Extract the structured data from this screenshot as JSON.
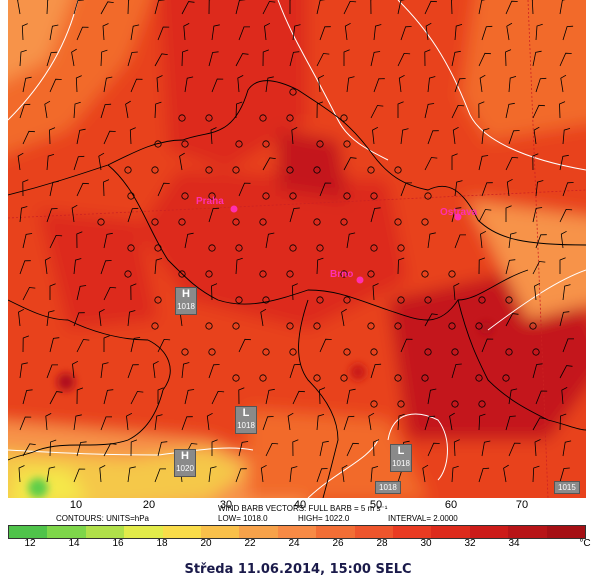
{
  "colors": {
    "deep_red": "#c4161c",
    "red": "#dd2b1c",
    "red_orange": "#e8421f",
    "orange": "#f26a2c",
    "light_orange": "#f7934a",
    "yellow": "#f5e84a",
    "green": "#5fce4a",
    "city": "#ff2fb0",
    "contour": "#ffffff",
    "border": "#000000"
  },
  "map": {
    "cities": [
      {
        "name": "Praha"
      },
      {
        "name": "Ostrava"
      },
      {
        "name": "Brno"
      }
    ],
    "pressure_centers": [
      {
        "letter": "H",
        "value": "1018"
      },
      {
        "letter": "H",
        "value": "1020"
      },
      {
        "letter": "L",
        "value": "1018"
      },
      {
        "letter": "L",
        "value": "1018"
      }
    ],
    "edge_labels": [
      "1018",
      "1015"
    ],
    "x_ticks": [
      "10",
      "20",
      "30",
      "40",
      "50",
      "60",
      "70"
    ]
  },
  "info": {
    "vectors": "WIND BARB VECTORS: FULL BARB = 5 m s⁻¹",
    "contours": "CONTOURS: UNITS=hPa",
    "low": "LOW= 1018.0",
    "high": "HIGH= 1022.0",
    "interval": "INTERVAL= 2.0000"
  },
  "scale": {
    "colors": [
      "#4fc34a",
      "#7ed64a",
      "#b0e04a",
      "#e2eb4a",
      "#f9dc4a",
      "#f9c04a",
      "#f7a24a",
      "#f78a45",
      "#f26e35",
      "#ee552c",
      "#e93b22",
      "#dd2b1c",
      "#cc1b19",
      "#b71417",
      "#a50f14"
    ],
    "labels": [
      "12",
      "14",
      "16",
      "18",
      "20",
      "22",
      "24",
      "26",
      "28",
      "30",
      "32",
      "34"
    ],
    "unit": "°C"
  },
  "footer": "Středa 11.06.2014, 15:00 SELC"
}
